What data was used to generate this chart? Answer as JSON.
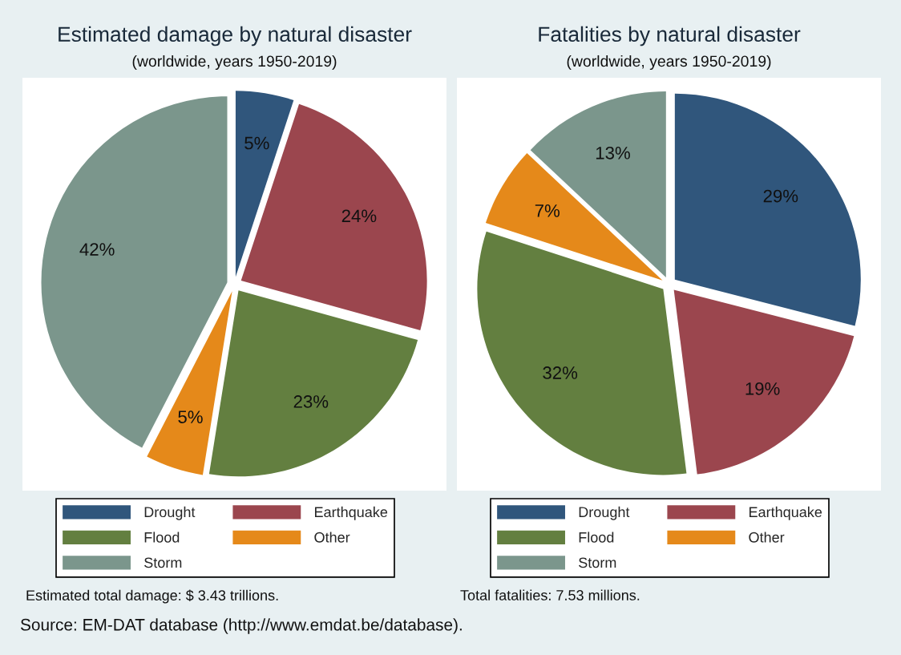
{
  "chart_data": [
    {
      "type": "pie",
      "title": "Estimated damage by natural disaster",
      "subtitle": "(worldwide, years 1950-2019)",
      "categories": [
        "Drought",
        "Earthquake",
        "Flood",
        "Other",
        "Storm"
      ],
      "values": [
        5,
        24,
        23,
        5,
        42
      ],
      "colors": [
        "#30567c",
        "#9b464e",
        "#637f40",
        "#e5891a",
        "#7b968c"
      ],
      "value_labels": [
        "5%",
        "24%",
        "23%",
        "5%",
        "42%"
      ],
      "legend": "bottom",
      "annotations": [
        "Estimated total damage: $ 3.43 trillions.",
        "Source: EM-DAT database (http://www.emdat.be/database)."
      ]
    },
    {
      "type": "pie",
      "title": "Fatalities by natural disaster",
      "subtitle": "(worldwide, years 1950-2019)",
      "categories": [
        "Drought",
        "Earthquake",
        "Flood",
        "Other",
        "Storm"
      ],
      "values": [
        29,
        19,
        32,
        7,
        13
      ],
      "colors": [
        "#30567c",
        "#9b464e",
        "#637f40",
        "#e5891a",
        "#7b968c"
      ],
      "value_labels": [
        "29%",
        "19%",
        "32%",
        "7%",
        "13%"
      ],
      "legend": "bottom",
      "annotations": [
        "Total fatalities: 7.53 millions."
      ]
    }
  ]
}
